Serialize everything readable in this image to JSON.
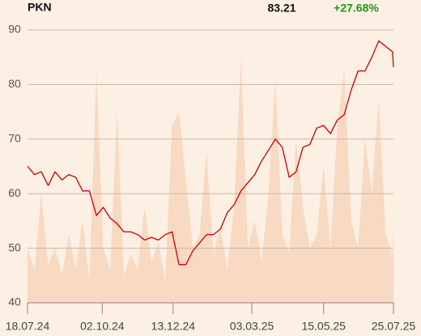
{
  "chart_data": {
    "type": "line",
    "title": "PKN",
    "price_label": "83.21",
    "change_label": "+27.68%",
    "change_color": "#1a9a1a",
    "x": [
      "2024-07-18",
      "2024-07-25",
      "2024-08-01",
      "2024-08-08",
      "2024-08-15",
      "2024-08-22",
      "2024-08-29",
      "2024-09-05",
      "2024-09-12",
      "2024-09-19",
      "2024-09-26",
      "2024-10-03",
      "2024-10-10",
      "2024-10-17",
      "2024-10-24",
      "2024-10-31",
      "2024-11-07",
      "2024-11-14",
      "2024-11-21",
      "2024-11-28",
      "2024-12-05",
      "2024-12-12",
      "2024-12-19",
      "2024-12-26",
      "2025-01-02",
      "2025-01-09",
      "2025-01-16",
      "2025-01-23",
      "2025-01-30",
      "2025-02-06",
      "2025-02-13",
      "2025-02-20",
      "2025-02-27",
      "2025-03-06",
      "2025-03-13",
      "2025-03-20",
      "2025-03-27",
      "2025-04-03",
      "2025-04-10",
      "2025-04-17",
      "2025-04-24",
      "2025-05-01",
      "2025-05-08",
      "2025-05-15",
      "2025-05-22",
      "2025-05-29",
      "2025-06-05",
      "2025-06-12",
      "2025-06-19",
      "2025-06-26",
      "2025-07-03",
      "2025-07-10",
      "2025-07-17",
      "2025-07-24",
      "2025-07-25"
    ],
    "series": [
      {
        "color": "#c80000",
        "values": [
          65,
          63.5,
          64,
          61.5,
          64,
          62.5,
          63.5,
          63,
          60.5,
          60.5,
          56,
          57.5,
          55.5,
          54.5,
          53,
          53,
          52.5,
          51.5,
          52,
          51.5,
          52.5,
          53,
          47,
          47,
          49.5,
          51,
          52.5,
          52.5,
          53.5,
          56.5,
          58,
          60.5,
          62,
          63.5,
          66,
          68,
          70,
          68.5,
          63,
          64,
          68.5,
          69,
          72,
          72.5,
          71,
          73.5,
          74.5,
          79,
          82.5,
          82.5,
          85,
          88,
          87,
          86,
          83.21
        ]
      },
      {
        "color": "#f8d9c2",
        "axis": "y2",
        "values": [
          20,
          12,
          40,
          14,
          20,
          10,
          25,
          12,
          30,
          8,
          85,
          20,
          12,
          70,
          10,
          18,
          12,
          35,
          15,
          22,
          8,
          65,
          70,
          45,
          20,
          25,
          55,
          18,
          28,
          12,
          35,
          90,
          20,
          30,
          15,
          40,
          82,
          25,
          18,
          60,
          35,
          20,
          25,
          50,
          20,
          65,
          85,
          30,
          20,
          60,
          40,
          75,
          25,
          18,
          30
        ]
      }
    ],
    "xlim": [
      "2024-07-18",
      "2025-07-25"
    ],
    "xticks": [
      {
        "value": "2024-07-18",
        "label": "18.07.24"
      },
      {
        "value": "2024-10-02",
        "label": "02.10.24"
      },
      {
        "value": "2024-12-13",
        "label": "13.12.24"
      },
      {
        "value": "2025-03-03",
        "label": "03.03.25"
      },
      {
        "value": "2025-05-15",
        "label": "15.05.25"
      },
      {
        "value": "2025-07-25",
        "label": "25.07.25"
      }
    ],
    "ylim": [
      40,
      90
    ],
    "yticks": [
      40,
      50,
      60,
      70,
      80,
      90
    ],
    "y2lim": [
      0,
      100
    ],
    "grid": true
  }
}
